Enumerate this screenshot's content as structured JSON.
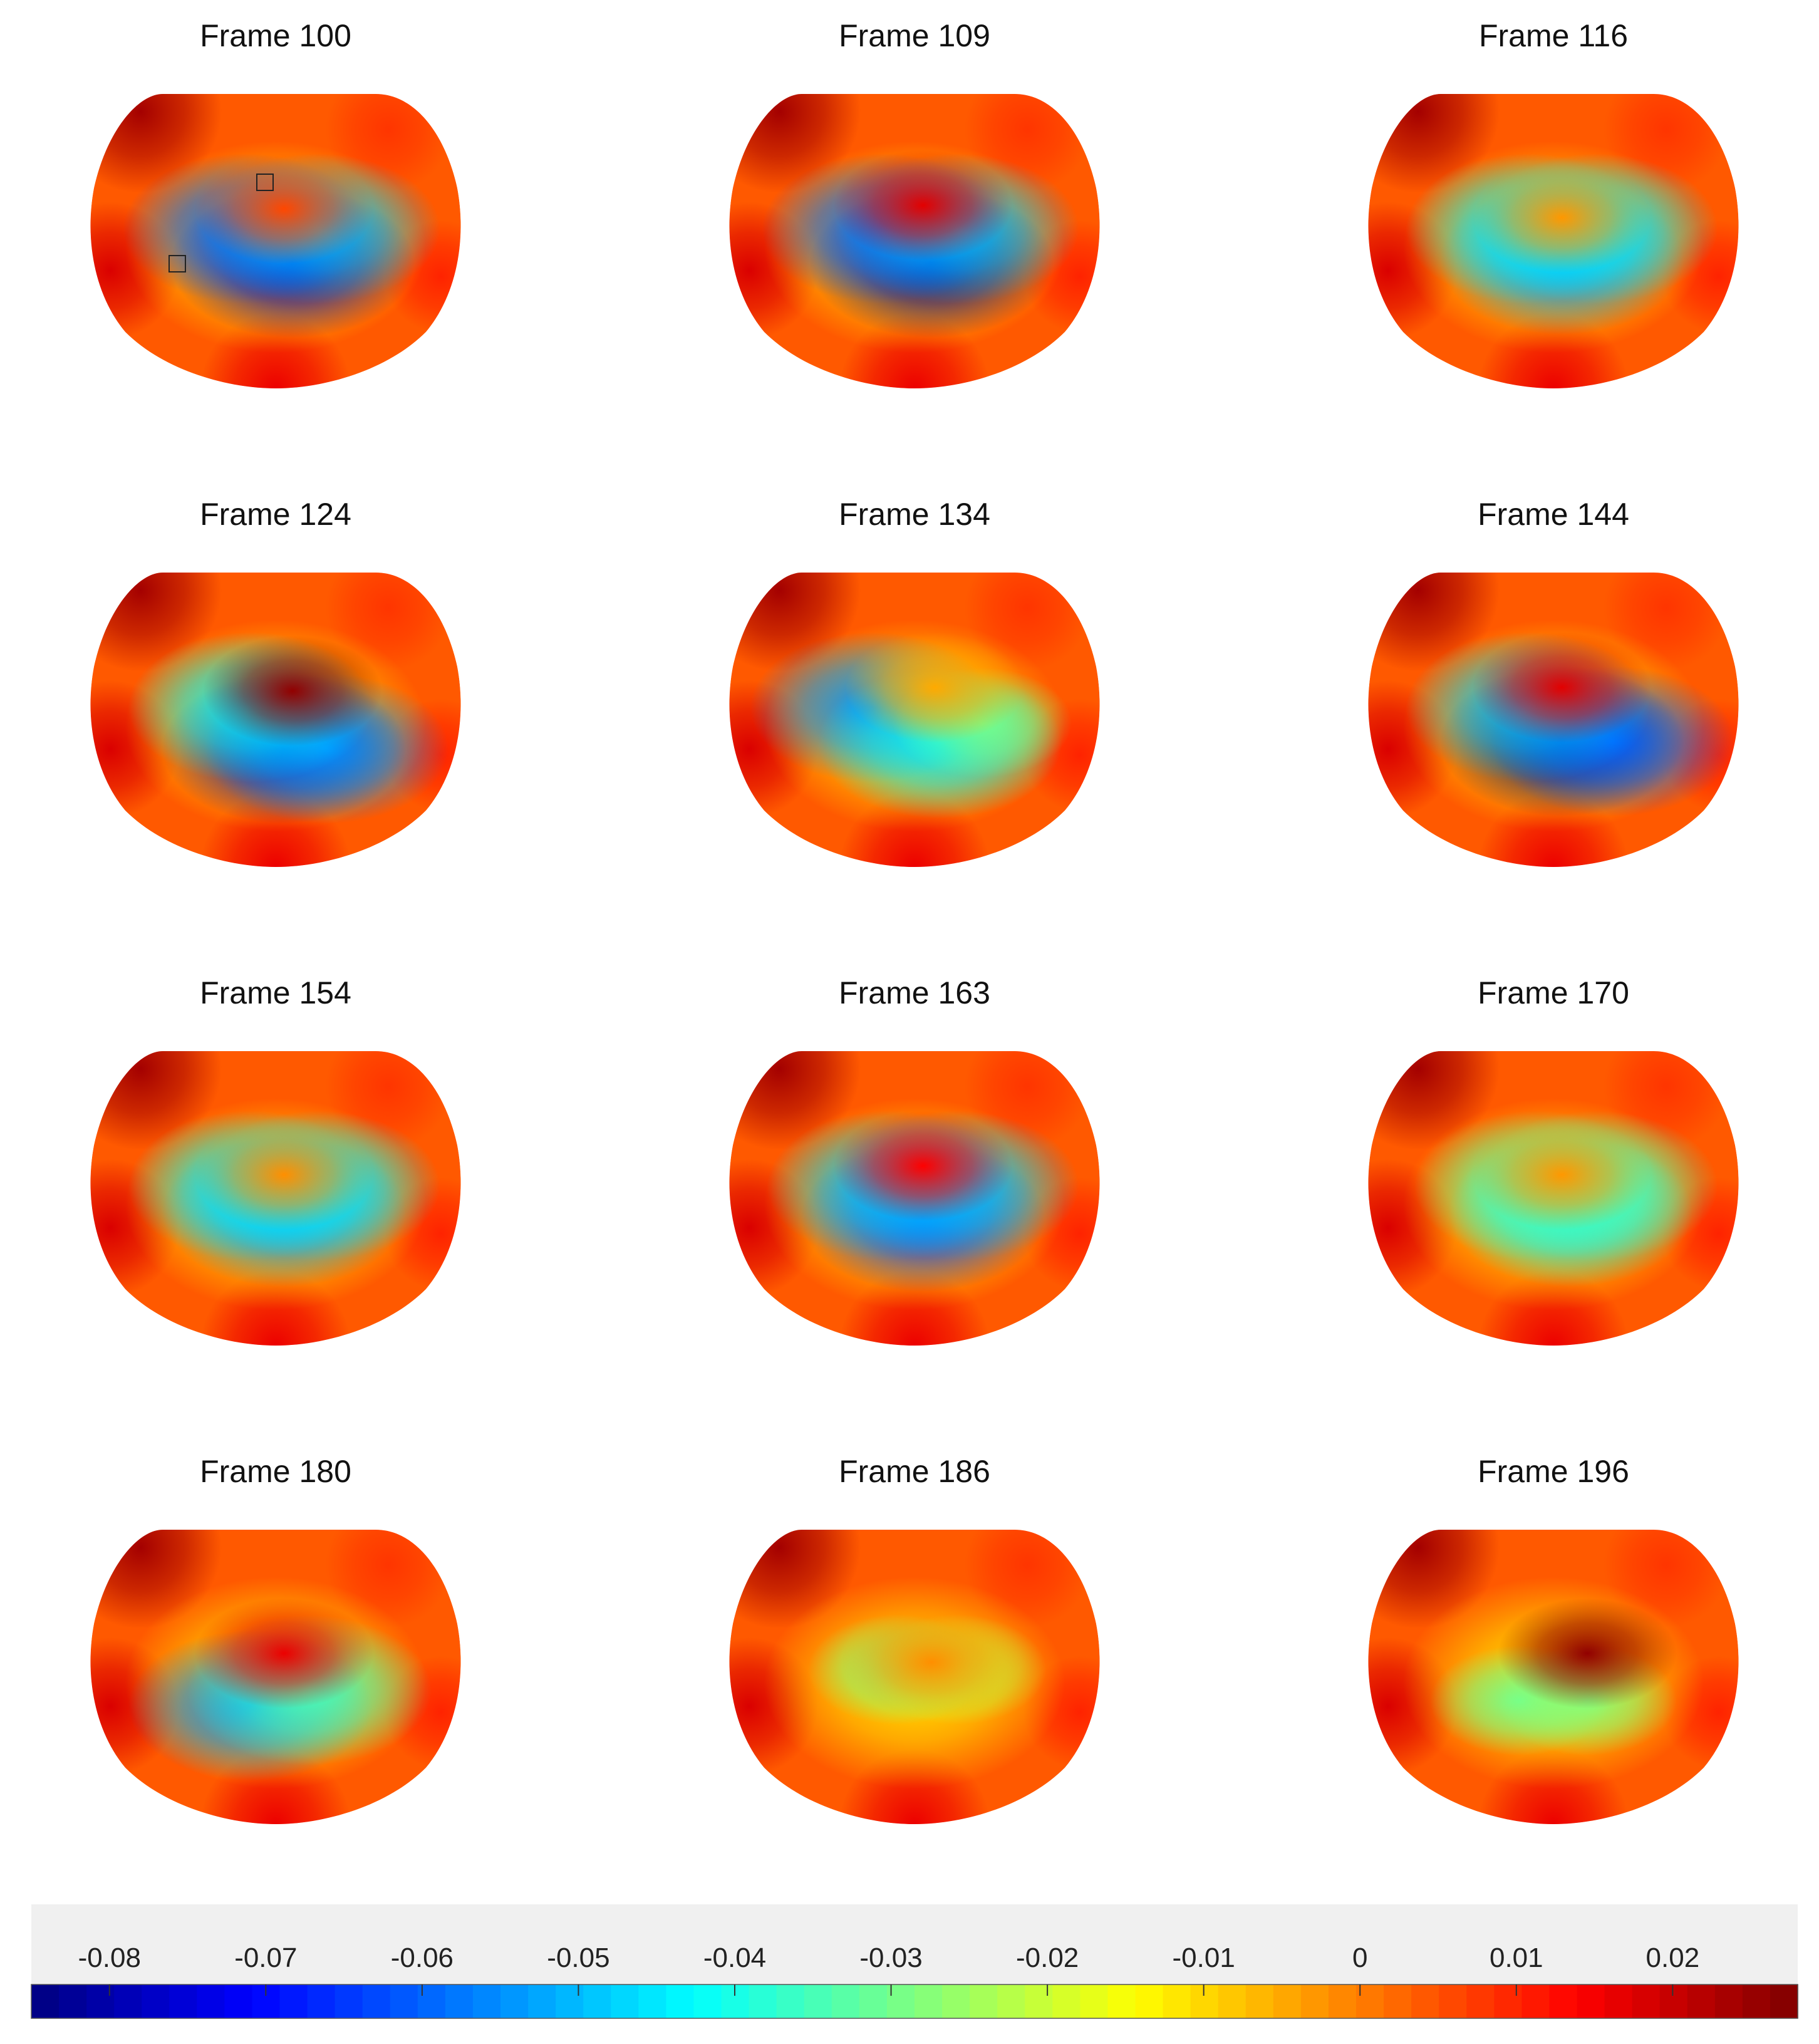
{
  "chart_data": {
    "type": "heatmap",
    "colormap": "jet",
    "panels": [
      {
        "title": "Frame 100",
        "markers": 2,
        "blobs": [
          {
            "cx": 0.1,
            "cy": 0.38,
            "v": -0.078
          },
          {
            "cx": -0.18,
            "cy": 0.05,
            "v": -0.06
          },
          {
            "cx": 0.25,
            "cy": 0.05,
            "v": -0.05
          },
          {
            "cx": 0.05,
            "cy": -0.5,
            "v": 0.006
          }
        ]
      },
      {
        "title": "Frame 109",
        "markers": 0,
        "blobs": [
          {
            "cx": 0.1,
            "cy": 0.38,
            "v": -0.082
          },
          {
            "cx": -0.18,
            "cy": 0.05,
            "v": -0.06
          },
          {
            "cx": 0.25,
            "cy": 0.05,
            "v": -0.05
          },
          {
            "cx": 0.05,
            "cy": -0.52,
            "v": 0.017
          }
        ]
      },
      {
        "title": "Frame 116",
        "markers": 0,
        "blobs": [
          {
            "cx": 0.05,
            "cy": 0.35,
            "v": -0.055
          },
          {
            "cx": -0.15,
            "cy": 0.05,
            "v": -0.045
          },
          {
            "cx": 0.25,
            "cy": 0.05,
            "v": -0.045
          },
          {
            "cx": 0.05,
            "cy": -0.45,
            "v": -0.003
          }
        ]
      },
      {
        "title": "Frame 124",
        "markers": 0,
        "blobs": [
          {
            "cx": 0.05,
            "cy": 0.45,
            "v": -0.078
          },
          {
            "cx": 0.3,
            "cy": 0.45,
            "v": -0.055
          },
          {
            "cx": -0.15,
            "cy": 0.05,
            "v": -0.045
          },
          {
            "cx": 0.1,
            "cy": -0.48,
            "v": 0.026
          }
        ]
      },
      {
        "title": "Frame 134",
        "markers": 0,
        "blobs": [
          {
            "cx": -0.25,
            "cy": 0.05,
            "v": -0.055
          },
          {
            "cx": 0.15,
            "cy": 0.4,
            "v": -0.045
          },
          {
            "cx": 0.4,
            "cy": 0.2,
            "v": -0.03
          },
          {
            "cx": 0.12,
            "cy": -0.5,
            "v": -0.005
          }
        ]
      },
      {
        "title": "Frame 144",
        "markers": 0,
        "blobs": [
          {
            "cx": 0.05,
            "cy": 0.38,
            "v": -0.088
          },
          {
            "cx": 0.35,
            "cy": 0.38,
            "v": -0.06
          },
          {
            "cx": -0.15,
            "cy": 0.05,
            "v": -0.05
          },
          {
            "cx": 0.05,
            "cy": -0.5,
            "v": 0.017
          }
        ]
      },
      {
        "title": "Frame 154",
        "markers": 0,
        "blobs": [
          {
            "cx": 0.05,
            "cy": 0.3,
            "v": -0.055
          },
          {
            "cx": -0.15,
            "cy": 0.05,
            "v": -0.045
          },
          {
            "cx": 0.25,
            "cy": 0.05,
            "v": -0.045
          },
          {
            "cx": 0.05,
            "cy": -0.45,
            "v": -0.002
          }
        ]
      },
      {
        "title": "Frame 163",
        "markers": 0,
        "blobs": [
          {
            "cx": 0.05,
            "cy": 0.35,
            "v": -0.065
          },
          {
            "cx": -0.15,
            "cy": 0.05,
            "v": -0.05
          },
          {
            "cx": 0.25,
            "cy": 0.05,
            "v": -0.05
          },
          {
            "cx": 0.05,
            "cy": -0.5,
            "v": 0.014
          }
        ]
      },
      {
        "title": "Frame 170",
        "markers": 0,
        "blobs": [
          {
            "cx": 0.1,
            "cy": 0.3,
            "v": -0.045
          },
          {
            "cx": -0.1,
            "cy": 0.05,
            "v": -0.035
          },
          {
            "cx": 0.25,
            "cy": 0.05,
            "v": -0.035
          },
          {
            "cx": 0.05,
            "cy": -0.45,
            "v": -0.003
          }
        ]
      },
      {
        "title": "Frame 180",
        "markers": 0,
        "blobs": [
          {
            "cx": -0.15,
            "cy": 0.45,
            "v": -0.055
          },
          {
            "cx": 0.2,
            "cy": 0.3,
            "v": -0.035
          },
          {
            "cx": 0.05,
            "cy": -0.45,
            "v": 0.016
          }
        ]
      },
      {
        "title": "Frame 186",
        "markers": 0,
        "blobs": [
          {
            "cx": -0.1,
            "cy": 0.1,
            "v": -0.028
          },
          {
            "cx": 0.25,
            "cy": 0.1,
            "v": -0.022
          },
          {
            "cx": 0.1,
            "cy": -0.4,
            "v": -0.002
          }
        ]
      },
      {
        "title": "Frame 196",
        "markers": 0,
        "blobs": [
          {
            "cx": -0.2,
            "cy": 0.4,
            "v": -0.03
          },
          {
            "cx": 0.2,
            "cy": 0.4,
            "v": -0.028
          },
          {
            "cx": 0.2,
            "cy": -0.45,
            "v": 0.026
          }
        ]
      }
    ],
    "colorbar": {
      "min": -0.085,
      "max": 0.028,
      "tick_values": [
        -0.08,
        -0.07,
        -0.06,
        -0.05,
        -0.04,
        -0.03,
        -0.02,
        -0.01,
        0,
        0.01,
        0.02
      ],
      "tick_labels": [
        "-0.08",
        "-0.07",
        "-0.06",
        "-0.05",
        "-0.04",
        "-0.03",
        "-0.02",
        "-0.01",
        "0",
        "0.01",
        "0.02"
      ]
    }
  }
}
